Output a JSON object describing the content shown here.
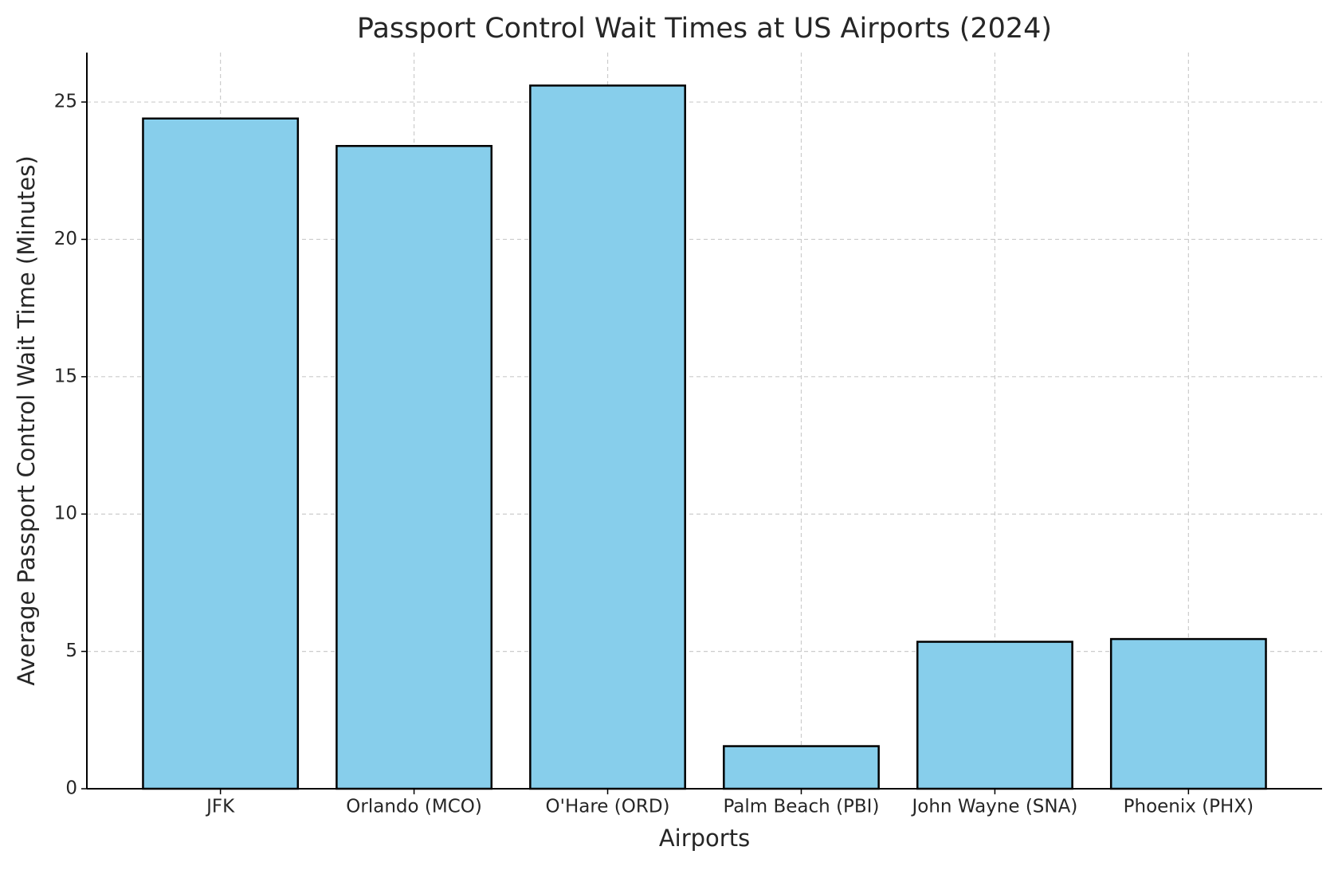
{
  "chart_data": {
    "type": "bar",
    "title": "Passport Control Wait Times at US Airports (2024)",
    "x_label": "Airports",
    "y_label": "Average Passport Control Wait Time (Minutes)",
    "categories": [
      "JFK",
      "Orlando (MCO)",
      "O'Hare (ORD)",
      "Palm Beach (PBI)",
      "John Wayne (SNA)",
      "Phoenix (PHX)"
    ],
    "values": [
      24.4,
      23.4,
      25.6,
      1.55,
      5.35,
      5.45
    ],
    "color": "#87ceeb",
    "edge_color": "#000000",
    "ylim": [
      0,
      26.8
    ],
    "yticks": [
      0,
      5,
      10,
      15,
      20,
      25
    ],
    "grid": true
  }
}
